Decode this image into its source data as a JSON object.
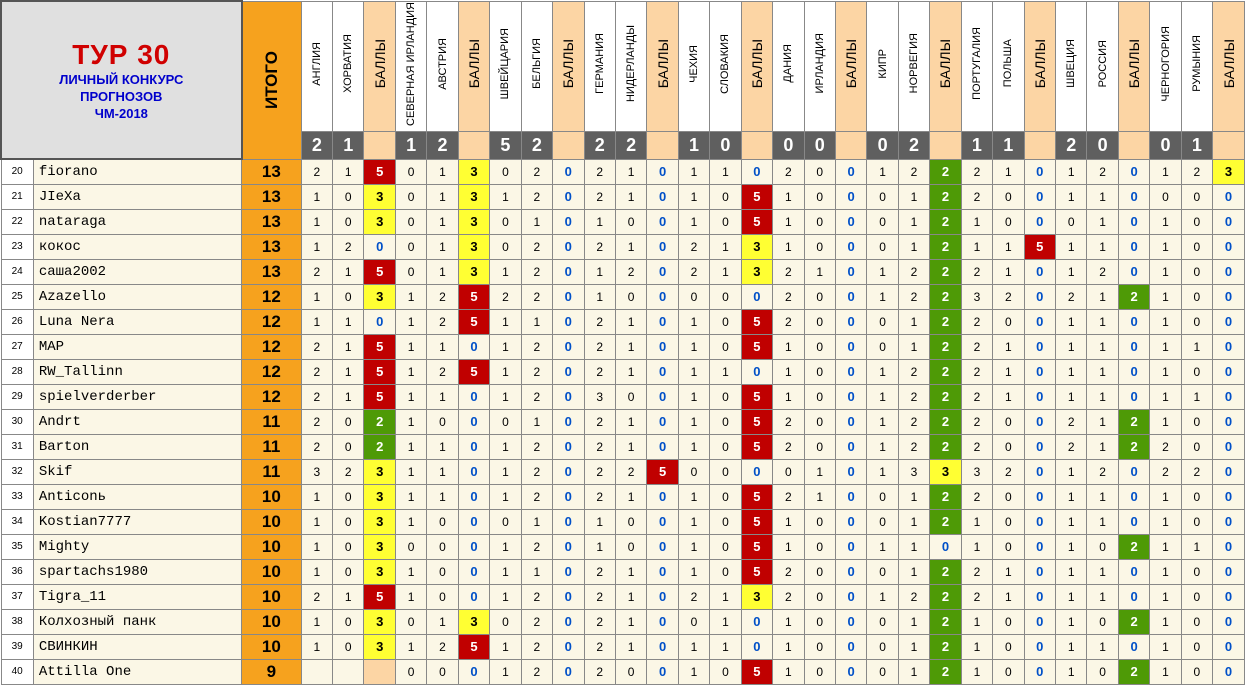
{
  "title": {
    "main": "ТУР 30",
    "line1": "ЛИЧНЫЙ КОНКУРС",
    "line2": "ПРОГНОЗОВ",
    "line3": "ЧМ-2018"
  },
  "total_label": "ИТОГО",
  "points_label": "БАЛЛЫ",
  "matches": [
    {
      "home": "АНГЛИЯ",
      "away": "ХОРВАТИЯ",
      "home_score": "2",
      "away_score": "1"
    },
    {
      "home": "СЕВЕРНАЯ ИРЛАНДИЯ",
      "away": "АВСТРИЯ",
      "home_score": "1",
      "away_score": "2"
    },
    {
      "home": "ШВЕЙЦАРИЯ",
      "away": "БЕЛЬГИЯ",
      "home_score": "5",
      "away_score": "2"
    },
    {
      "home": "ГЕРМАНИЯ",
      "away": "НИДЕРЛАНДЫ",
      "home_score": "2",
      "away_score": "2"
    },
    {
      "home": "ЧЕХИЯ",
      "away": "СЛОВАКИЯ",
      "home_score": "1",
      "away_score": "0"
    },
    {
      "home": "ДАНИЯ",
      "away": "ИРЛАНДИЯ",
      "home_score": "0",
      "away_score": "0"
    },
    {
      "home": "КИПР",
      "away": "НОРВЕГИЯ",
      "home_score": "0",
      "away_score": "2"
    },
    {
      "home": "ПОРТУГАЛИЯ",
      "away": "ПОЛЬША",
      "home_score": "1",
      "away_score": "1"
    },
    {
      "home": "ШВЕЦИЯ",
      "away": "РОССИЯ",
      "home_score": "2",
      "away_score": "0"
    },
    {
      "home": "ЧЕРНОГОРИЯ",
      "away": "РУМЫНИЯ",
      "home_score": "0",
      "away_score": "1"
    }
  ],
  "rows": [
    {
      "pos": "20",
      "name": "fiorano",
      "total": "13",
      "m": [
        [
          "2",
          "1",
          "5"
        ],
        [
          "0",
          "1",
          "3"
        ],
        [
          "0",
          "2",
          "0"
        ],
        [
          "2",
          "1",
          "0"
        ],
        [
          "1",
          "1",
          "0"
        ],
        [
          "2",
          "0",
          "0"
        ],
        [
          "1",
          "2",
          "2"
        ],
        [
          "2",
          "1",
          "0"
        ],
        [
          "1",
          "2",
          "0"
        ],
        [
          "1",
          "2",
          "3"
        ]
      ]
    },
    {
      "pos": "21",
      "name": "JIeXa",
      "total": "13",
      "m": [
        [
          "1",
          "0",
          "3"
        ],
        [
          "0",
          "1",
          "3"
        ],
        [
          "1",
          "2",
          "0"
        ],
        [
          "2",
          "1",
          "0"
        ],
        [
          "1",
          "0",
          "5"
        ],
        [
          "1",
          "0",
          "0"
        ],
        [
          "0",
          "1",
          "2"
        ],
        [
          "2",
          "0",
          "0"
        ],
        [
          "1",
          "1",
          "0"
        ],
        [
          "0",
          "0",
          "0"
        ]
      ]
    },
    {
      "pos": "22",
      "name": "nataraga",
      "total": "13",
      "m": [
        [
          "1",
          "0",
          "3"
        ],
        [
          "0",
          "1",
          "3"
        ],
        [
          "0",
          "1",
          "0"
        ],
        [
          "1",
          "0",
          "0"
        ],
        [
          "1",
          "0",
          "5"
        ],
        [
          "1",
          "0",
          "0"
        ],
        [
          "0",
          "1",
          "2"
        ],
        [
          "1",
          "0",
          "0"
        ],
        [
          "0",
          "1",
          "0"
        ],
        [
          "1",
          "0",
          "0"
        ]
      ]
    },
    {
      "pos": "23",
      "name": "кокос",
      "total": "13",
      "m": [
        [
          "1",
          "2",
          "0"
        ],
        [
          "0",
          "1",
          "3"
        ],
        [
          "0",
          "2",
          "0"
        ],
        [
          "2",
          "1",
          "0"
        ],
        [
          "2",
          "1",
          "3"
        ],
        [
          "1",
          "0",
          "0"
        ],
        [
          "0",
          "1",
          "2"
        ],
        [
          "1",
          "1",
          "5"
        ],
        [
          "1",
          "1",
          "0"
        ],
        [
          "1",
          "0",
          "0"
        ]
      ]
    },
    {
      "pos": "24",
      "name": "саша2002",
      "total": "13",
      "m": [
        [
          "2",
          "1",
          "5"
        ],
        [
          "0",
          "1",
          "3"
        ],
        [
          "1",
          "2",
          "0"
        ],
        [
          "1",
          "2",
          "0"
        ],
        [
          "2",
          "1",
          "3"
        ],
        [
          "2",
          "1",
          "0"
        ],
        [
          "1",
          "2",
          "2"
        ],
        [
          "2",
          "1",
          "0"
        ],
        [
          "1",
          "2",
          "0"
        ],
        [
          "1",
          "0",
          "0"
        ]
      ]
    },
    {
      "pos": "25",
      "name": "Azazello",
      "total": "12",
      "m": [
        [
          "1",
          "0",
          "3"
        ],
        [
          "1",
          "2",
          "5"
        ],
        [
          "2",
          "2",
          "0"
        ],
        [
          "1",
          "0",
          "0"
        ],
        [
          "0",
          "0",
          "0"
        ],
        [
          "2",
          "0",
          "0"
        ],
        [
          "1",
          "2",
          "2"
        ],
        [
          "3",
          "2",
          "0"
        ],
        [
          "2",
          "1",
          "2"
        ],
        [
          "1",
          "0",
          "0"
        ]
      ]
    },
    {
      "pos": "26",
      "name": "Luna Nera",
      "total": "12",
      "m": [
        [
          "1",
          "1",
          "0"
        ],
        [
          "1",
          "2",
          "5"
        ],
        [
          "1",
          "1",
          "0"
        ],
        [
          "2",
          "1",
          "0"
        ],
        [
          "1",
          "0",
          "5"
        ],
        [
          "2",
          "0",
          "0"
        ],
        [
          "0",
          "1",
          "2"
        ],
        [
          "2",
          "0",
          "0"
        ],
        [
          "1",
          "1",
          "0"
        ],
        [
          "1",
          "0",
          "0"
        ]
      ]
    },
    {
      "pos": "27",
      "name": "MAP",
      "total": "12",
      "m": [
        [
          "2",
          "1",
          "5"
        ],
        [
          "1",
          "1",
          "0"
        ],
        [
          "1",
          "2",
          "0"
        ],
        [
          "2",
          "1",
          "0"
        ],
        [
          "1",
          "0",
          "5"
        ],
        [
          "1",
          "0",
          "0"
        ],
        [
          "0",
          "1",
          "2"
        ],
        [
          "2",
          "1",
          "0"
        ],
        [
          "1",
          "1",
          "0"
        ],
        [
          "1",
          "1",
          "0"
        ]
      ]
    },
    {
      "pos": "28",
      "name": "RW_Tallinn",
      "total": "12",
      "m": [
        [
          "2",
          "1",
          "5"
        ],
        [
          "1",
          "2",
          "5"
        ],
        [
          "1",
          "2",
          "0"
        ],
        [
          "2",
          "1",
          "0"
        ],
        [
          "1",
          "1",
          "0"
        ],
        [
          "1",
          "0",
          "0"
        ],
        [
          "1",
          "2",
          "2"
        ],
        [
          "2",
          "1",
          "0"
        ],
        [
          "1",
          "1",
          "0"
        ],
        [
          "1",
          "0",
          "0"
        ]
      ]
    },
    {
      "pos": "29",
      "name": "spielverderber",
      "total": "12",
      "m": [
        [
          "2",
          "1",
          "5"
        ],
        [
          "1",
          "1",
          "0"
        ],
        [
          "1",
          "2",
          "0"
        ],
        [
          "3",
          "0",
          "0"
        ],
        [
          "1",
          "0",
          "5"
        ],
        [
          "1",
          "0",
          "0"
        ],
        [
          "1",
          "2",
          "2"
        ],
        [
          "2",
          "1",
          "0"
        ],
        [
          "1",
          "1",
          "0"
        ],
        [
          "1",
          "1",
          "0"
        ]
      ]
    },
    {
      "pos": "30",
      "name": "Andrt",
      "total": "11",
      "m": [
        [
          "2",
          "0",
          "2"
        ],
        [
          "1",
          "0",
          "0"
        ],
        [
          "0",
          "1",
          "0"
        ],
        [
          "2",
          "1",
          "0"
        ],
        [
          "1",
          "0",
          "5"
        ],
        [
          "2",
          "0",
          "0"
        ],
        [
          "1",
          "2",
          "2"
        ],
        [
          "2",
          "0",
          "0"
        ],
        [
          "2",
          "1",
          "2"
        ],
        [
          "1",
          "0",
          "0"
        ]
      ]
    },
    {
      "pos": "31",
      "name": "Barton",
      "total": "11",
      "m": [
        [
          "2",
          "0",
          "2"
        ],
        [
          "1",
          "1",
          "0"
        ],
        [
          "1",
          "2",
          "0"
        ],
        [
          "2",
          "1",
          "0"
        ],
        [
          "1",
          "0",
          "5"
        ],
        [
          "2",
          "0",
          "0"
        ],
        [
          "1",
          "2",
          "2"
        ],
        [
          "2",
          "0",
          "0"
        ],
        [
          "2",
          "1",
          "2"
        ],
        [
          "2",
          "0",
          "0"
        ]
      ]
    },
    {
      "pos": "32",
      "name": "Skif",
      "total": "11",
      "m": [
        [
          "3",
          "2",
          "3"
        ],
        [
          "1",
          "1",
          "0"
        ],
        [
          "1",
          "2",
          "0"
        ],
        [
          "2",
          "2",
          "5"
        ],
        [
          "0",
          "0",
          "0"
        ],
        [
          "0",
          "1",
          "0"
        ],
        [
          "1",
          "3",
          "3"
        ],
        [
          "3",
          "2",
          "0"
        ],
        [
          "1",
          "2",
          "0"
        ],
        [
          "2",
          "2",
          "0"
        ]
      ]
    },
    {
      "pos": "33",
      "name": "Anticonь",
      "total": "10",
      "m": [
        [
          "1",
          "0",
          "3"
        ],
        [
          "1",
          "1",
          "0"
        ],
        [
          "1",
          "2",
          "0"
        ],
        [
          "2",
          "1",
          "0"
        ],
        [
          "1",
          "0",
          "5"
        ],
        [
          "2",
          "1",
          "0"
        ],
        [
          "0",
          "1",
          "2"
        ],
        [
          "2",
          "0",
          "0"
        ],
        [
          "1",
          "1",
          "0"
        ],
        [
          "1",
          "0",
          "0"
        ]
      ]
    },
    {
      "pos": "34",
      "name": "Kostian7777",
      "total": "10",
      "m": [
        [
          "1",
          "0",
          "3"
        ],
        [
          "1",
          "0",
          "0"
        ],
        [
          "0",
          "1",
          "0"
        ],
        [
          "1",
          "0",
          "0"
        ],
        [
          "1",
          "0",
          "5"
        ],
        [
          "1",
          "0",
          "0"
        ],
        [
          "0",
          "1",
          "2"
        ],
        [
          "1",
          "0",
          "0"
        ],
        [
          "1",
          "1",
          "0"
        ],
        [
          "1",
          "0",
          "0"
        ]
      ]
    },
    {
      "pos": "35",
      "name": "Mighty",
      "total": "10",
      "m": [
        [
          "1",
          "0",
          "3"
        ],
        [
          "0",
          "0",
          "0"
        ],
        [
          "1",
          "2",
          "0"
        ],
        [
          "1",
          "0",
          "0"
        ],
        [
          "1",
          "0",
          "5"
        ],
        [
          "1",
          "0",
          "0"
        ],
        [
          "1",
          "1",
          "0"
        ],
        [
          "1",
          "0",
          "0"
        ],
        [
          "1",
          "0",
          "2"
        ],
        [
          "1",
          "1",
          "0"
        ]
      ]
    },
    {
      "pos": "36",
      "name": "spartachs1980",
      "total": "10",
      "m": [
        [
          "1",
          "0",
          "3"
        ],
        [
          "1",
          "0",
          "0"
        ],
        [
          "1",
          "1",
          "0"
        ],
        [
          "2",
          "1",
          "0"
        ],
        [
          "1",
          "0",
          "5"
        ],
        [
          "2",
          "0",
          "0"
        ],
        [
          "0",
          "1",
          "2"
        ],
        [
          "2",
          "1",
          "0"
        ],
        [
          "1",
          "1",
          "0"
        ],
        [
          "1",
          "0",
          "0"
        ]
      ]
    },
    {
      "pos": "37",
      "name": "Tigra_11",
      "total": "10",
      "m": [
        [
          "2",
          "1",
          "5"
        ],
        [
          "1",
          "0",
          "0"
        ],
        [
          "1",
          "2",
          "0"
        ],
        [
          "2",
          "1",
          "0"
        ],
        [
          "2",
          "1",
          "3"
        ],
        [
          "2",
          "0",
          "0"
        ],
        [
          "1",
          "2",
          "2"
        ],
        [
          "2",
          "1",
          "0"
        ],
        [
          "1",
          "1",
          "0"
        ],
        [
          "1",
          "0",
          "0"
        ]
      ]
    },
    {
      "pos": "38",
      "name": "Колхозный панк",
      "total": "10",
      "m": [
        [
          "1",
          "0",
          "3"
        ],
        [
          "0",
          "1",
          "3"
        ],
        [
          "0",
          "2",
          "0"
        ],
        [
          "2",
          "1",
          "0"
        ],
        [
          "0",
          "1",
          "0"
        ],
        [
          "1",
          "0",
          "0"
        ],
        [
          "0",
          "1",
          "2"
        ],
        [
          "1",
          "0",
          "0"
        ],
        [
          "1",
          "0",
          "2"
        ],
        [
          "1",
          "0",
          "0"
        ]
      ]
    },
    {
      "pos": "39",
      "name": "СВИНКИН",
      "total": "10",
      "m": [
        [
          "1",
          "0",
          "3"
        ],
        [
          "1",
          "2",
          "5"
        ],
        [
          "1",
          "2",
          "0"
        ],
        [
          "2",
          "1",
          "0"
        ],
        [
          "1",
          "1",
          "0"
        ],
        [
          "1",
          "0",
          "0"
        ],
        [
          "0",
          "1",
          "2"
        ],
        [
          "1",
          "0",
          "0"
        ],
        [
          "1",
          "1",
          "0"
        ],
        [
          "1",
          "0",
          "0"
        ]
      ]
    },
    {
      "pos": "40",
      "name": "Attilla One",
      "total": "9",
      "m": [
        [
          "",
          "",
          ""
        ],
        [
          "0",
          "0",
          "0"
        ],
        [
          "1",
          "2",
          "0"
        ],
        [
          "2",
          "0",
          "0"
        ],
        [
          "1",
          "0",
          "5"
        ],
        [
          "1",
          "0",
          "0"
        ],
        [
          "0",
          "1",
          "2"
        ],
        [
          "1",
          "0",
          "0"
        ],
        [
          "1",
          "0",
          "2"
        ],
        [
          "1",
          "0",
          "0"
        ]
      ]
    }
  ]
}
